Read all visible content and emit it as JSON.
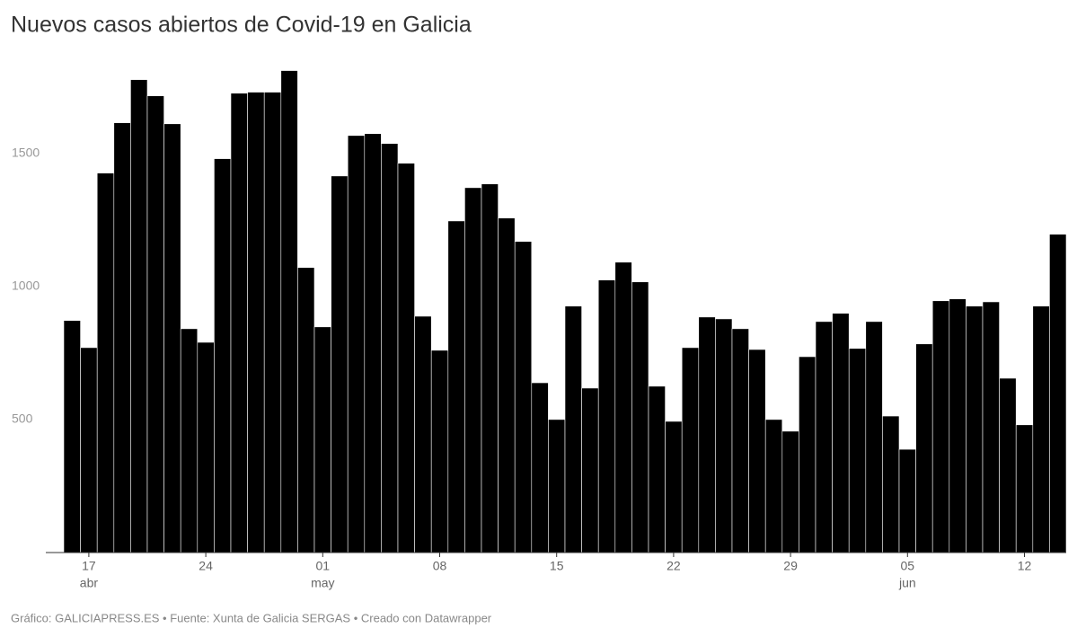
{
  "chart_data": {
    "type": "bar",
    "title": "Nuevos casos abiertos de Covid-19 en Galicia",
    "footer": "Gráfico: GALICIAPRESS.ES • Fuente: Xunta de Galicia SERGAS • Creado con Datawrapper",
    "categories": [
      null,
      "17",
      null,
      null,
      null,
      null,
      null,
      null,
      "24",
      null,
      null,
      null,
      null,
      null,
      null,
      "01",
      null,
      null,
      null,
      null,
      null,
      null,
      "08",
      null,
      null,
      null,
      null,
      null,
      null,
      "15",
      null,
      null,
      null,
      null,
      null,
      null,
      "22",
      null,
      null,
      null,
      null,
      null,
      null,
      "29",
      null,
      null,
      null,
      null,
      null,
      null,
      "05",
      null,
      null,
      null,
      null,
      null,
      null,
      "12",
      null,
      null
    ],
    "month_labels": [
      null,
      "abr",
      null,
      null,
      null,
      null,
      null,
      null,
      null,
      null,
      null,
      null,
      null,
      null,
      null,
      "may",
      null,
      null,
      null,
      null,
      null,
      null,
      null,
      null,
      null,
      null,
      null,
      null,
      null,
      null,
      null,
      null,
      null,
      null,
      null,
      null,
      null,
      null,
      null,
      null,
      null,
      null,
      null,
      null,
      null,
      null,
      null,
      null,
      null,
      null,
      "jun",
      null,
      null,
      null,
      null,
      null,
      null,
      null,
      null,
      null
    ],
    "values": [
      872,
      770,
      1426,
      1615,
      1777,
      1716,
      1611,
      841,
      790,
      1480,
      1726,
      1730,
      1730,
      1811,
      1071,
      848,
      1415,
      1567,
      1574,
      1537,
      1463,
      888,
      760,
      1246,
      1371,
      1385,
      1257,
      1169,
      638,
      500,
      926,
      618,
      1024,
      1091,
      1017,
      625,
      493,
      770,
      885,
      878,
      841,
      763,
      500,
      456,
      736,
      868,
      899,
      767,
      868,
      513,
      388,
      784,
      946,
      953,
      926,
      942,
      655,
      480,
      926,
      1196
    ],
    "color": "#000000",
    "ylim": [
      0,
      1850
    ],
    "yticks": [
      500,
      1000,
      1500
    ],
    "grid": false
  }
}
